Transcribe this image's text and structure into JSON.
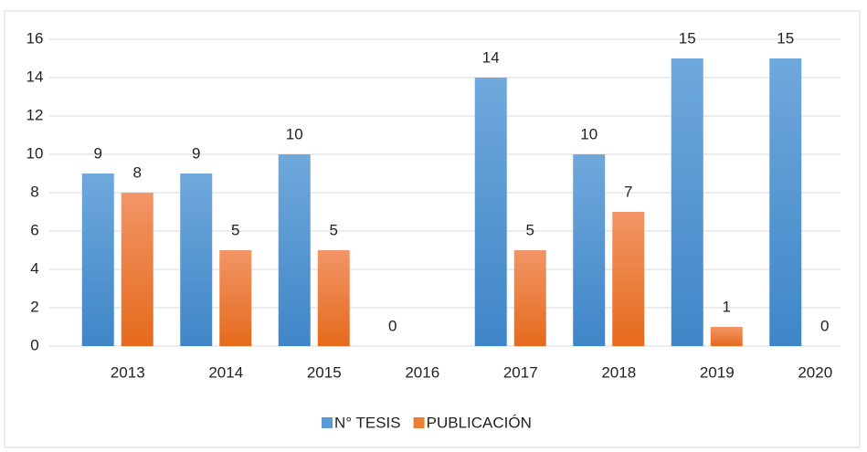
{
  "chart_data": {
    "type": "bar",
    "categories": [
      "2013",
      "2014",
      "2015",
      "2016",
      "2017",
      "2018",
      "2019",
      "2020"
    ],
    "series": [
      {
        "name": "N° TESIS",
        "color": "#5b9bd5",
        "values": [
          9,
          9,
          10,
          0,
          14,
          10,
          15,
          15
        ]
      },
      {
        "name": "PUBLICACIÓN",
        "color": "#ed7d31",
        "values": [
          8,
          5,
          5,
          null,
          5,
          7,
          1,
          0
        ]
      }
    ],
    "ylim": [
      0,
      16
    ],
    "yticks": [
      0,
      2,
      4,
      6,
      8,
      10,
      12,
      14,
      16
    ],
    "grid": true,
    "legend": "bottom"
  }
}
